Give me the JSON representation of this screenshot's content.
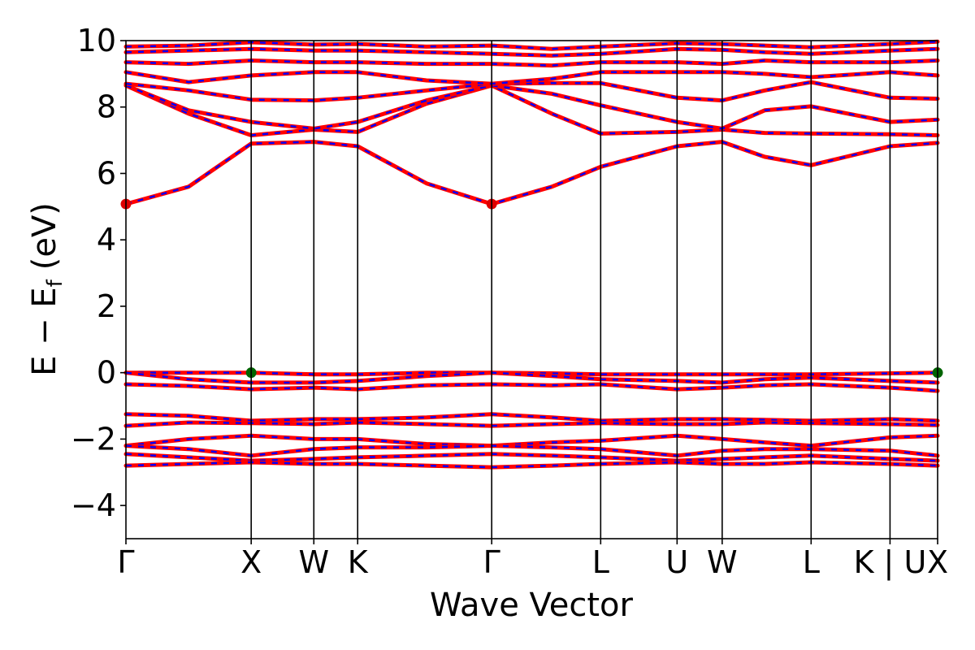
{
  "chart_data": {
    "type": "line",
    "title": "",
    "xlabel": "Wave Vector",
    "ylabel": "E − E",
    "ylabel_subscript": "f",
    "ylabel_unit": "(eV)",
    "ylim": [
      -5,
      10
    ],
    "yticks": [
      -4,
      -2,
      0,
      2,
      4,
      6,
      8,
      10
    ],
    "ytick_labels": [
      "−4",
      "−2",
      "0",
      "2",
      "4",
      "6",
      "8",
      "10"
    ],
    "xlim": [
      0,
      6.48
    ],
    "kpoints": [
      {
        "label": "Γ",
        "x": 0.0
      },
      {
        "label": "X",
        "x": 1.0
      },
      {
        "label": "W",
        "x": 1.5
      },
      {
        "label": "K",
        "x": 1.85
      },
      {
        "label": "Γ",
        "x": 2.92
      },
      {
        "label": "L",
        "x": 3.79
      },
      {
        "label": "U",
        "x": 4.4
      },
      {
        "label": "W",
        "x": 4.76
      },
      {
        "label": "L",
        "x": 5.47
      },
      {
        "label": "K | U",
        "x": 6.1
      },
      {
        "label": "X",
        "x": 6.48
      }
    ],
    "colors": {
      "spin_up": "#0000ff",
      "spin_down": "#ff0000",
      "cbm": "#dd0000",
      "vbm": "#006400"
    },
    "conduction_band_minimum": [
      {
        "x": 0.0,
        "y": 5.08
      },
      {
        "x": 2.92,
        "y": 5.08
      }
    ],
    "valence_band_maximum": [
      {
        "x": 1.0,
        "y": 0.0
      },
      {
        "x": 6.48,
        "y": 0.0
      }
    ],
    "series": [
      {
        "values": [
          [
            0,
            5.08
          ],
          [
            0.5,
            5.6
          ],
          [
            1.0,
            6.9
          ],
          [
            1.5,
            6.95
          ],
          [
            1.85,
            6.82
          ],
          [
            2.4,
            5.7
          ],
          [
            2.92,
            5.08
          ],
          [
            3.4,
            5.6
          ],
          [
            3.79,
            6.2
          ],
          [
            4.4,
            6.82
          ],
          [
            4.76,
            6.95
          ],
          [
            5.1,
            6.5
          ],
          [
            5.47,
            6.25
          ],
          [
            6.1,
            6.82
          ],
          [
            6.48,
            6.92
          ]
        ]
      },
      {
        "values": [
          [
            0,
            8.65
          ],
          [
            0.5,
            7.8
          ],
          [
            1.0,
            7.15
          ],
          [
            1.5,
            7.32
          ],
          [
            1.85,
            7.25
          ],
          [
            2.4,
            8.1
          ],
          [
            2.92,
            8.65
          ],
          [
            3.4,
            7.8
          ],
          [
            3.79,
            7.2
          ],
          [
            4.4,
            7.25
          ],
          [
            4.76,
            7.32
          ],
          [
            5.1,
            7.22
          ],
          [
            5.47,
            7.2
          ],
          [
            6.1,
            7.18
          ],
          [
            6.48,
            7.15
          ]
        ]
      },
      {
        "values": [
          [
            0,
            8.65
          ],
          [
            0.5,
            7.9
          ],
          [
            1.0,
            7.55
          ],
          [
            1.5,
            7.35
          ],
          [
            1.85,
            7.55
          ],
          [
            2.4,
            8.2
          ],
          [
            2.92,
            8.65
          ],
          [
            3.4,
            8.4
          ],
          [
            3.79,
            8.05
          ],
          [
            4.4,
            7.55
          ],
          [
            4.76,
            7.35
          ],
          [
            5.1,
            7.9
          ],
          [
            5.47,
            8.02
          ],
          [
            6.1,
            7.55
          ],
          [
            6.48,
            7.62
          ]
        ]
      },
      {
        "values": [
          [
            0,
            8.7
          ],
          [
            0.5,
            8.5
          ],
          [
            1.0,
            8.22
          ],
          [
            1.5,
            8.2
          ],
          [
            1.85,
            8.28
          ],
          [
            2.4,
            8.5
          ],
          [
            2.92,
            8.7
          ],
          [
            3.4,
            8.72
          ],
          [
            3.79,
            8.72
          ],
          [
            4.4,
            8.28
          ],
          [
            4.76,
            8.2
          ],
          [
            5.1,
            8.5
          ],
          [
            5.47,
            8.75
          ],
          [
            6.1,
            8.28
          ],
          [
            6.48,
            8.25
          ]
        ]
      },
      {
        "values": [
          [
            0,
            9.05
          ],
          [
            0.5,
            8.75
          ],
          [
            1.0,
            8.95
          ],
          [
            1.5,
            9.05
          ],
          [
            1.85,
            9.05
          ],
          [
            2.4,
            8.8
          ],
          [
            2.92,
            8.7
          ],
          [
            3.4,
            8.85
          ],
          [
            3.79,
            9.05
          ],
          [
            4.4,
            9.05
          ],
          [
            4.76,
            9.05
          ],
          [
            5.1,
            9.0
          ],
          [
            5.47,
            8.9
          ],
          [
            6.1,
            9.05
          ],
          [
            6.48,
            8.95
          ]
        ]
      },
      {
        "values": [
          [
            0,
            9.35
          ],
          [
            0.5,
            9.3
          ],
          [
            1.0,
            9.4
          ],
          [
            1.5,
            9.35
          ],
          [
            1.85,
            9.35
          ],
          [
            2.4,
            9.3
          ],
          [
            2.92,
            9.3
          ],
          [
            3.4,
            9.25
          ],
          [
            3.79,
            9.35
          ],
          [
            4.4,
            9.35
          ],
          [
            4.76,
            9.3
          ],
          [
            5.1,
            9.4
          ],
          [
            5.47,
            9.35
          ],
          [
            6.1,
            9.35
          ],
          [
            6.48,
            9.4
          ]
        ]
      },
      {
        "values": [
          [
            0,
            9.65
          ],
          [
            0.5,
            9.7
          ],
          [
            1.0,
            9.75
          ],
          [
            1.5,
            9.7
          ],
          [
            1.85,
            9.7
          ],
          [
            2.4,
            9.65
          ],
          [
            2.92,
            9.6
          ],
          [
            3.4,
            9.55
          ],
          [
            3.79,
            9.6
          ],
          [
            4.4,
            9.75
          ],
          [
            4.76,
            9.72
          ],
          [
            5.1,
            9.65
          ],
          [
            5.47,
            9.6
          ],
          [
            6.1,
            9.7
          ],
          [
            6.48,
            9.75
          ]
        ]
      },
      {
        "values": [
          [
            0,
            9.82
          ],
          [
            0.5,
            9.85
          ],
          [
            1.0,
            9.95
          ],
          [
            1.5,
            9.88
          ],
          [
            1.85,
            9.9
          ],
          [
            2.4,
            9.82
          ],
          [
            2.92,
            9.85
          ],
          [
            3.4,
            9.75
          ],
          [
            3.79,
            9.82
          ],
          [
            4.4,
            9.92
          ],
          [
            4.76,
            9.9
          ],
          [
            5.1,
            9.85
          ],
          [
            5.47,
            9.8
          ],
          [
            6.1,
            9.9
          ],
          [
            6.48,
            9.97
          ]
        ]
      },
      {
        "values": [
          [
            0,
            0.0
          ],
          [
            0.5,
            0.0
          ],
          [
            1.0,
            0.0
          ],
          [
            1.5,
            -0.05
          ],
          [
            1.85,
            -0.05
          ],
          [
            2.4,
            0.0
          ],
          [
            2.92,
            0.0
          ],
          [
            3.4,
            -0.02
          ],
          [
            3.79,
            -0.05
          ],
          [
            4.4,
            -0.05
          ],
          [
            4.76,
            -0.05
          ],
          [
            5.1,
            -0.05
          ],
          [
            5.47,
            -0.05
          ],
          [
            6.1,
            -0.02
          ],
          [
            6.48,
            0.0
          ]
        ]
      },
      {
        "values": [
          [
            0,
            0.0
          ],
          [
            0.5,
            -0.2
          ],
          [
            1.0,
            -0.3
          ],
          [
            1.5,
            -0.3
          ],
          [
            1.85,
            -0.25
          ],
          [
            2.4,
            -0.1
          ],
          [
            2.92,
            0.0
          ],
          [
            3.4,
            -0.1
          ],
          [
            3.79,
            -0.2
          ],
          [
            4.4,
            -0.25
          ],
          [
            4.76,
            -0.3
          ],
          [
            5.1,
            -0.2
          ],
          [
            5.47,
            -0.15
          ],
          [
            6.1,
            -0.25
          ],
          [
            6.48,
            -0.3
          ]
        ]
      },
      {
        "values": [
          [
            0,
            -0.35
          ],
          [
            0.5,
            -0.4
          ],
          [
            1.0,
            -0.5
          ],
          [
            1.5,
            -0.45
          ],
          [
            1.85,
            -0.5
          ],
          [
            2.4,
            -0.38
          ],
          [
            2.92,
            -0.35
          ],
          [
            3.4,
            -0.38
          ],
          [
            3.79,
            -0.35
          ],
          [
            4.4,
            -0.5
          ],
          [
            4.76,
            -0.45
          ],
          [
            5.1,
            -0.38
          ],
          [
            5.47,
            -0.35
          ],
          [
            6.1,
            -0.45
          ],
          [
            6.48,
            -0.55
          ]
        ]
      },
      {
        "values": [
          [
            0,
            -1.25
          ],
          [
            0.5,
            -1.3
          ],
          [
            1.0,
            -1.45
          ],
          [
            1.5,
            -1.4
          ],
          [
            1.85,
            -1.4
          ],
          [
            2.4,
            -1.35
          ],
          [
            2.92,
            -1.25
          ],
          [
            3.4,
            -1.35
          ],
          [
            3.79,
            -1.45
          ],
          [
            4.4,
            -1.4
          ],
          [
            4.76,
            -1.4
          ],
          [
            5.1,
            -1.42
          ],
          [
            5.47,
            -1.45
          ],
          [
            6.1,
            -1.4
          ],
          [
            6.48,
            -1.45
          ]
        ]
      },
      {
        "values": [
          [
            0,
            -1.6
          ],
          [
            0.5,
            -1.5
          ],
          [
            1.0,
            -1.52
          ],
          [
            1.5,
            -1.55
          ],
          [
            1.85,
            -1.5
          ],
          [
            2.4,
            -1.55
          ],
          [
            2.92,
            -1.6
          ],
          [
            3.4,
            -1.55
          ],
          [
            3.79,
            -1.52
          ],
          [
            4.4,
            -1.55
          ],
          [
            4.76,
            -1.55
          ],
          [
            5.1,
            -1.5
          ],
          [
            5.47,
            -1.52
          ],
          [
            6.1,
            -1.55
          ],
          [
            6.48,
            -1.58
          ]
        ]
      },
      {
        "values": [
          [
            0,
            -2.2
          ],
          [
            0.5,
            -2.0
          ],
          [
            1.0,
            -1.9
          ],
          [
            1.5,
            -2.0
          ],
          [
            1.85,
            -2.0
          ],
          [
            2.4,
            -2.15
          ],
          [
            2.92,
            -2.2
          ],
          [
            3.4,
            -2.1
          ],
          [
            3.79,
            -2.05
          ],
          [
            4.4,
            -1.9
          ],
          [
            4.76,
            -2.0
          ],
          [
            5.1,
            -2.1
          ],
          [
            5.47,
            -2.2
          ],
          [
            6.1,
            -1.95
          ],
          [
            6.48,
            -1.9
          ]
        ]
      },
      {
        "values": [
          [
            0,
            -2.2
          ],
          [
            0.5,
            -2.3
          ],
          [
            1.0,
            -2.5
          ],
          [
            1.5,
            -2.3
          ],
          [
            1.85,
            -2.25
          ],
          [
            2.4,
            -2.25
          ],
          [
            2.92,
            -2.2
          ],
          [
            3.4,
            -2.25
          ],
          [
            3.79,
            -2.3
          ],
          [
            4.4,
            -2.5
          ],
          [
            4.76,
            -2.35
          ],
          [
            5.1,
            -2.3
          ],
          [
            5.47,
            -2.3
          ],
          [
            6.1,
            -2.35
          ],
          [
            6.48,
            -2.5
          ]
        ]
      },
      {
        "values": [
          [
            0,
            -2.45
          ],
          [
            0.5,
            -2.55
          ],
          [
            1.0,
            -2.65
          ],
          [
            1.5,
            -2.6
          ],
          [
            1.85,
            -2.55
          ],
          [
            2.4,
            -2.5
          ],
          [
            2.92,
            -2.45
          ],
          [
            3.4,
            -2.5
          ],
          [
            3.79,
            -2.55
          ],
          [
            4.4,
            -2.65
          ],
          [
            4.76,
            -2.6
          ],
          [
            5.1,
            -2.55
          ],
          [
            5.47,
            -2.5
          ],
          [
            6.1,
            -2.6
          ],
          [
            6.48,
            -2.65
          ]
        ]
      },
      {
        "values": [
          [
            0,
            -2.8
          ],
          [
            0.5,
            -2.75
          ],
          [
            1.0,
            -2.7
          ],
          [
            1.5,
            -2.75
          ],
          [
            1.85,
            -2.75
          ],
          [
            2.4,
            -2.8
          ],
          [
            2.92,
            -2.85
          ],
          [
            3.4,
            -2.8
          ],
          [
            3.79,
            -2.75
          ],
          [
            4.4,
            -2.7
          ],
          [
            4.76,
            -2.75
          ],
          [
            5.1,
            -2.75
          ],
          [
            5.47,
            -2.7
          ],
          [
            6.1,
            -2.75
          ],
          [
            6.48,
            -2.8
          ]
        ]
      }
    ]
  }
}
